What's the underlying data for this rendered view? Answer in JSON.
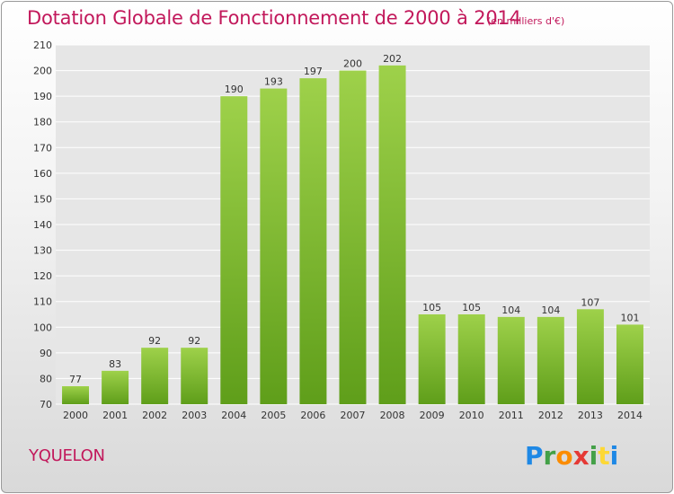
{
  "title": "Dotation Globale de Fonctionnement de 2000 à 2014",
  "unit_note": "(en milliers d'€)",
  "commune": "YQUELON",
  "logo": {
    "letters": [
      "P",
      "r",
      "o",
      "x",
      "i",
      "t",
      "i"
    ],
    "colors": [
      "#1e88e5",
      "#43a047",
      "#fb8c00",
      "#e53935",
      "#43a047",
      "#fdd835",
      "#1e88e5"
    ]
  },
  "colors": {
    "accent": "#c2185b",
    "bar_top": "#9ed14a",
    "bar_bottom": "#5f9e1a",
    "grid": "#ffffff",
    "plot_background": "#e6e6e6"
  },
  "chart_data": {
    "type": "bar",
    "title": "Dotation Globale de Fonctionnement de 2000 à 2014",
    "subtitle": "(en milliers d'€)",
    "xlabel": "",
    "ylabel": "",
    "categories": [
      "2000",
      "2001",
      "2002",
      "2003",
      "2004",
      "2005",
      "2006",
      "2007",
      "2008",
      "2009",
      "2010",
      "2011",
      "2012",
      "2013",
      "2014"
    ],
    "values": [
      77,
      83,
      92,
      92,
      190,
      193,
      197,
      200,
      202,
      105,
      105,
      104,
      104,
      107,
      101
    ],
    "ylim": [
      70,
      210
    ],
    "yticks": [
      70,
      80,
      90,
      100,
      110,
      120,
      130,
      140,
      150,
      160,
      170,
      180,
      190,
      200,
      210
    ],
    "grid": true,
    "legend": "none"
  }
}
